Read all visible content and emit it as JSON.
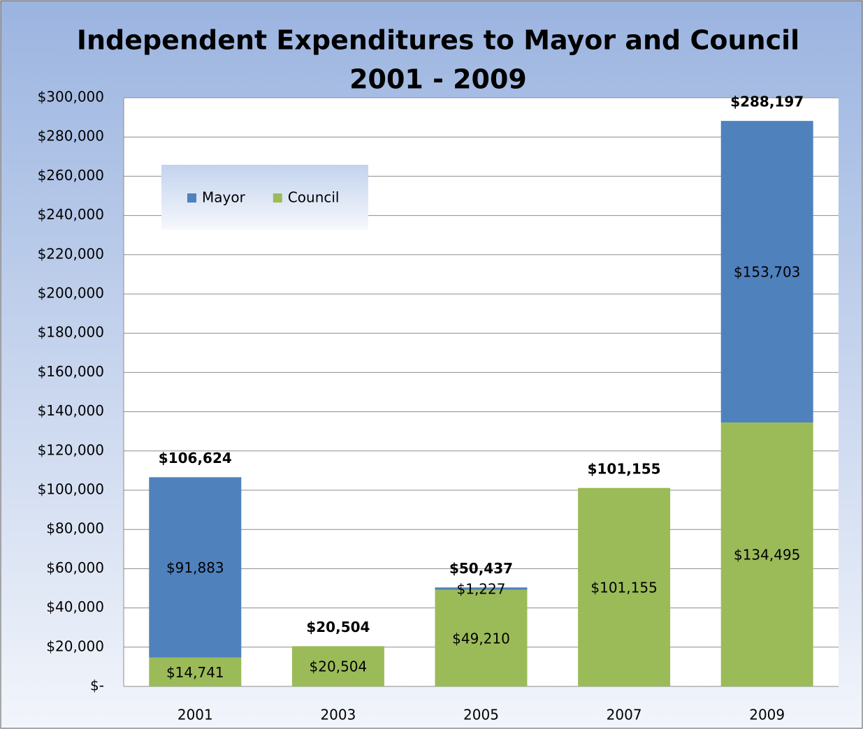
{
  "chart_data": {
    "type": "stacked_bar",
    "title": [
      "Independent Expenditures to Mayor and Council",
      "2001 - 2009"
    ],
    "categories": [
      "2001",
      "2003",
      "2005",
      "2007",
      "2009"
    ],
    "series": [
      {
        "name": "Council",
        "color": "#9bbb59",
        "values": [
          14741,
          20504,
          49210,
          101155,
          134495
        ],
        "value_labels": [
          "$14,741",
          "$20,504",
          "$49,210",
          "$101,155",
          "$134,495"
        ]
      },
      {
        "name": "Mayor",
        "color": "#4f81bd",
        "values": [
          91883,
          null,
          1227,
          null,
          153703
        ],
        "value_labels": [
          "$91,883",
          null,
          "$1,227",
          null,
          "$153,703"
        ]
      }
    ],
    "totals": [
      106624,
      20504,
      50437,
      101155,
      288197
    ],
    "total_labels": [
      "$106,624",
      "$20,504",
      "$50,437",
      "$101,155",
      "$288,197"
    ],
    "ylim": [
      0,
      300000
    ],
    "yticks": [
      {
        "value": 0,
        "label": "$-"
      },
      {
        "value": 20000,
        "label": "$20,000"
      },
      {
        "value": 40000,
        "label": "$40,000"
      },
      {
        "value": 60000,
        "label": "$60,000"
      },
      {
        "value": 80000,
        "label": "$80,000"
      },
      {
        "value": 100000,
        "label": "$100,000"
      },
      {
        "value": 120000,
        "label": "$120,000"
      },
      {
        "value": 140000,
        "label": "$140,000"
      },
      {
        "value": 160000,
        "label": "$160,000"
      },
      {
        "value": 180000,
        "label": "$180,000"
      },
      {
        "value": 200000,
        "label": "$200,000"
      },
      {
        "value": 220000,
        "label": "$220,000"
      },
      {
        "value": 240000,
        "label": "$240,000"
      },
      {
        "value": 260000,
        "label": "$260,000"
      },
      {
        "value": 280000,
        "label": "$280,000"
      },
      {
        "value": 300000,
        "label": "$300,000"
      }
    ],
    "grid": true,
    "legend": "top-left"
  }
}
